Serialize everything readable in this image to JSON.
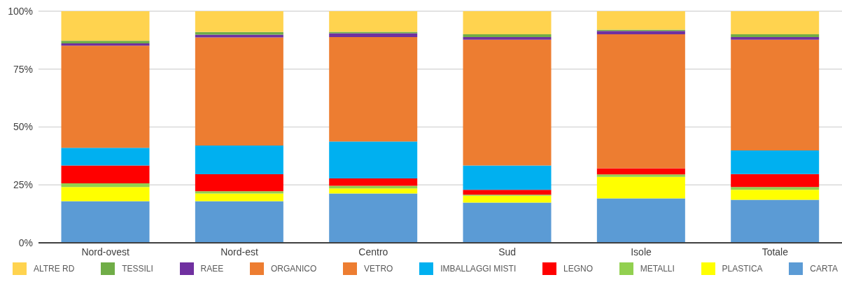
{
  "chart_data": {
    "type": "bar",
    "stacked": true,
    "categories": [
      "Nord-ovest",
      "Nord-est",
      "Centro",
      "Sud",
      "Isole",
      "Totale"
    ],
    "series": [
      {
        "name": "CARTA",
        "color": "#5b9bd5",
        "values": [
          18.0,
          18.0,
          21.3,
          17.4,
          19.2,
          18.6
        ]
      },
      {
        "name": "PLASTICA",
        "color": "#ffff00",
        "values": [
          6.1,
          3.3,
          2.2,
          2.9,
          9.3,
          4.3
        ]
      },
      {
        "name": "METALLI",
        "color": "#92d050",
        "values": [
          1.6,
          1.0,
          1.1,
          0.5,
          1.0,
          1.2
        ]
      },
      {
        "name": "LEGNO",
        "color": "#ff0000",
        "values": [
          7.7,
          7.3,
          3.2,
          2.1,
          2.7,
          5.6
        ]
      },
      {
        "name": "IMBALLAGGI MISTI",
        "color": "#00b0f0",
        "values": [
          7.6,
          12.4,
          15.9,
          10.5,
          0,
          10.2
        ]
      },
      {
        "name": "VETRO",
        "color": "#ed7d31",
        "values": [
          null,
          null,
          null,
          null,
          null,
          null
        ]
      },
      {
        "name": "ORGANICO",
        "color": "#ed7d31",
        "values": [
          44.1,
          46.7,
          45.1,
          54.3,
          57.8,
          47.8
        ]
      },
      {
        "name": "RAEE",
        "color": "#7030a0",
        "values": [
          1.0,
          1.2,
          1.7,
          1.1,
          1.5,
          1.1
        ]
      },
      {
        "name": "TESSILI",
        "color": "#70ad47",
        "values": [
          1.1,
          1.1,
          0.6,
          1.2,
          0.5,
          1.2
        ]
      },
      {
        "name": "ALTRE RD",
        "color": "#ffd34f",
        "values": [
          12.8,
          9.0,
          8.9,
          10.0,
          8.0,
          10.0
        ]
      }
    ],
    "ylim": [
      0,
      100
    ],
    "yticks": [
      {
        "value": 0,
        "label": "0%"
      },
      {
        "value": 25,
        "label": "25%"
      },
      {
        "value": 50,
        "label": "50%"
      },
      {
        "value": 75,
        "label": "75%"
      },
      {
        "value": 100,
        "label": "100%"
      }
    ],
    "grid": "y",
    "legend": "bottom"
  }
}
